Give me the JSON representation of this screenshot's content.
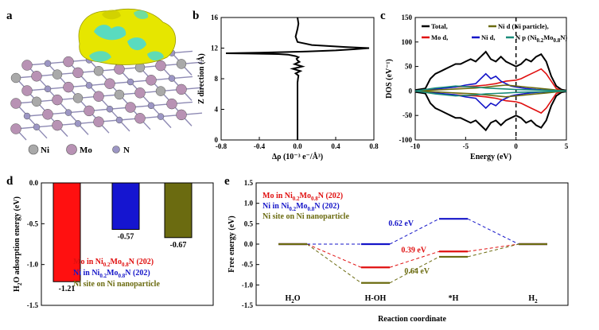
{
  "panels": {
    "a": {
      "letter": "a",
      "legend": [
        {
          "label": "Ni",
          "color": "#a9a9a9"
        },
        {
          "label": "Mo",
          "color": "#b892b4"
        },
        {
          "label": "N",
          "color": "#9c96c4"
        }
      ]
    },
    "b": {
      "letter": "b"
    },
    "c": {
      "letter": "c"
    },
    "d": {
      "letter": "d"
    },
    "e": {
      "letter": "e"
    }
  },
  "colors": {
    "black": "#000000",
    "red": "#e01010",
    "blue": "#1515c8",
    "olive": "#6b6b10",
    "teal": "#1a8c7a",
    "green": "#7a9a20",
    "charge_yellow": "#e6e600",
    "charge_cyan": "#3fd8e0"
  },
  "chart_data": [
    {
      "id": "b",
      "type": "line",
      "title": "",
      "xlabel": "Δρ (10⁻³ e⁻/Å³)",
      "ylabel": "Z direction (Å)",
      "xlim": [
        -0.8,
        0.8
      ],
      "ylim": [
        0,
        16
      ],
      "xticks": [
        "-0.8",
        "-0.4",
        "0.0",
        "0.4",
        "0.8"
      ],
      "yticks": [
        "0",
        "4",
        "8",
        "12",
        "16"
      ],
      "series": [
        {
          "x": [
            0,
            0,
            0,
            0,
            0,
            0.005,
            0.01,
            -0.02,
            0.03,
            -0.05,
            0.05,
            -0.03,
            0.02,
            0,
            -0.01,
            0.01,
            -0.02,
            -0.06,
            -0.1,
            -0.2,
            -0.5,
            -0.75,
            -0.4,
            0.1,
            0.4,
            0.6,
            0.75,
            0.5,
            0.15,
            0.0,
            -0.02,
            0.0,
            0.01,
            0.0
          ],
          "y": [
            0,
            2,
            4,
            6,
            7.5,
            8,
            8.4,
            8.7,
            9.0,
            9.3,
            9.6,
            9.9,
            10.2,
            10.4,
            10.6,
            10.8,
            10.95,
            11.05,
            11.15,
            11.22,
            11.28,
            11.32,
            11.4,
            11.55,
            11.7,
            11.85,
            12.0,
            12.15,
            12.4,
            12.8,
            13.5,
            14.5,
            15.2,
            16
          ]
        }
      ]
    },
    {
      "id": "c",
      "type": "line",
      "title": "",
      "xlabel": "Energy (eV)",
      "ylabel": "DOS (eV⁻¹)",
      "xlim": [
        -10,
        5
      ],
      "ylim": [
        -100,
        150
      ],
      "xticks": [
        "-10",
        "-5",
        "0",
        "5"
      ],
      "yticks": [
        "-100",
        "-50",
        "0",
        "50",
        "100",
        "150"
      ],
      "legend": [
        {
          "label": "Total,",
          "color": "#000000"
        },
        {
          "label": "Ni d (Ni particle),",
          "color": "#6b6b10"
        },
        {
          "label": "Mo d,",
          "color": "#e01010"
        },
        {
          "label": "Ni d,",
          "color": "#1515c8"
        },
        {
          "label_prefix": "N p (Ni",
          "sub1": "0.2",
          "mid": "Mo",
          "sub2": "0.8",
          "suffix": "N)",
          "color": "#1a8c7a"
        }
      ],
      "series": [
        {
          "name": "Total,",
          "x": [
            -10,
            -9,
            -8.5,
            -8,
            -7.5,
            -7,
            -6.5,
            -6,
            -5.5,
            -5,
            -4.5,
            -4,
            -3.5,
            -3,
            -2.5,
            -2,
            -1.5,
            -1,
            -0.5,
            0,
            0.5,
            1,
            1.5,
            2,
            2.5,
            3,
            3.5,
            4,
            4.5,
            5
          ],
          "y": [
            2,
            5,
            25,
            35,
            40,
            45,
            50,
            55,
            55,
            60,
            65,
            60,
            70,
            80,
            65,
            60,
            70,
            60,
            55,
            50,
            55,
            65,
            60,
            70,
            75,
            60,
            30,
            10,
            3,
            1
          ]
        },
        {
          "name": "Mo d,",
          "x": [
            -10,
            -8,
            -6,
            -4,
            -3,
            -2,
            -1,
            0,
            0.5,
            1,
            1.5,
            2,
            2.5,
            3,
            3.5,
            4,
            4.5,
            5
          ],
          "y": [
            0,
            5,
            8,
            10,
            12,
            15,
            20,
            22,
            25,
            30,
            35,
            40,
            45,
            35,
            20,
            5,
            1,
            0
          ]
        },
        {
          "name": "Ni d,",
          "x": [
            -10,
            -8,
            -6,
            -5,
            -4,
            -3.5,
            -3,
            -2.5,
            -2,
            -1.5,
            -1,
            -0.5,
            0,
            1,
            2,
            3,
            4,
            5
          ],
          "y": [
            0,
            4,
            8,
            12,
            15,
            25,
            35,
            25,
            30,
            20,
            15,
            10,
            8,
            5,
            3,
            2,
            1,
            0
          ]
        },
        {
          "name": "Ni d (Ni particle),",
          "x": [
            -10,
            -8,
            -6,
            -4,
            -3,
            -2,
            -1,
            0,
            1,
            2,
            3,
            4,
            5
          ],
          "y": [
            0,
            2,
            4,
            6,
            8,
            10,
            12,
            10,
            8,
            6,
            4,
            2,
            0
          ]
        },
        {
          "label_prefix": "N p",
          "x": [
            -10,
            -9,
            -8,
            -7,
            -6,
            -5,
            -4,
            -3,
            -2,
            -1,
            0,
            2,
            4,
            5
          ],
          "y": [
            0,
            3,
            6,
            8,
            10,
            9,
            8,
            6,
            5,
            4,
            3,
            2,
            1,
            0
          ]
        }
      ],
      "vline_x": 0
    },
    {
      "id": "d",
      "type": "bar",
      "title": "",
      "ylabel_pre": "H",
      "ylabel_sub": "2",
      "ylabel_post": "O adsorption energy (eV)",
      "ylim": [
        -1.5,
        0
      ],
      "yticks": [
        "-1.5",
        "-1.0",
        "-0.5",
        "0.0"
      ],
      "categories": [
        "Mo in Ni0.2Mo0.8N (202)",
        "Ni in Ni0.2Mo0.8N (202)",
        "Ni site on Ni nanoparticle"
      ],
      "values": [
        -1.21,
        -0.57,
        -0.67
      ],
      "value_labels": [
        "-1.21",
        "-0.57",
        "-0.67"
      ],
      "bar_colors": [
        "#ff1010",
        "#1515d0",
        "#6b6b10"
      ],
      "legend": [
        {
          "label_prefix": "Mo in Ni",
          "sub1": "0.2",
          "mid": "Mo",
          "sub2": "0.8",
          "suffix": "N (202)",
          "color": "#e01010"
        },
        {
          "label_prefix": "Ni in Ni",
          "sub1": "0.2",
          "mid": "Mo",
          "sub2": "0.8",
          "suffix": "N (202)",
          "color": "#1515c8"
        },
        {
          "label": "Ni site on Ni nanoparticle",
          "color": "#6b6b10"
        }
      ]
    },
    {
      "id": "e",
      "type": "line",
      "title": "",
      "xlabel": "Reaction coordinate",
      "ylabel": "Free energy (eV)",
      "ylim": [
        -1.5,
        1.5
      ],
      "yticks": [
        "-1.5",
        "-1.0",
        "-0.5",
        "0.0",
        "0.5",
        "1.0",
        "1.5"
      ],
      "categories": [
        {
          "pre": "H",
          "sub": "2",
          "post": "O"
        },
        {
          "pre": "H-OH",
          "sub": "",
          "post": ""
        },
        {
          "pre": "*H",
          "sub": "",
          "post": ""
        },
        {
          "pre": "H",
          "sub": "2",
          "post": ""
        }
      ],
      "series": [
        {
          "values": [
            0,
            -0.57,
            -0.18,
            0
          ],
          "color": "#e01010"
        },
        {
          "values": [
            0,
            0,
            0.62,
            0
          ],
          "color": "#1515c8"
        },
        {
          "values": [
            0,
            -0.95,
            -0.31,
            0
          ],
          "color": "#6b6b10"
        }
      ],
      "annotations": [
        "0.62 eV",
        "0.39 eV",
        "0.64 eV"
      ],
      "legend": [
        {
          "label_prefix": "Mo in Ni",
          "sub1": "0.2",
          "mid": "Mo",
          "sub2": "0.8",
          "suffix": "N (202)",
          "color": "#e01010"
        },
        {
          "label_prefix": "Ni in Ni",
          "sub1": "0.2",
          "mid": "Mo",
          "sub2": "0.8",
          "suffix": "N (202)",
          "color": "#1515c8"
        },
        {
          "label": "Ni site on Ni nanoparticle",
          "color": "#6b6b10"
        }
      ]
    }
  ]
}
